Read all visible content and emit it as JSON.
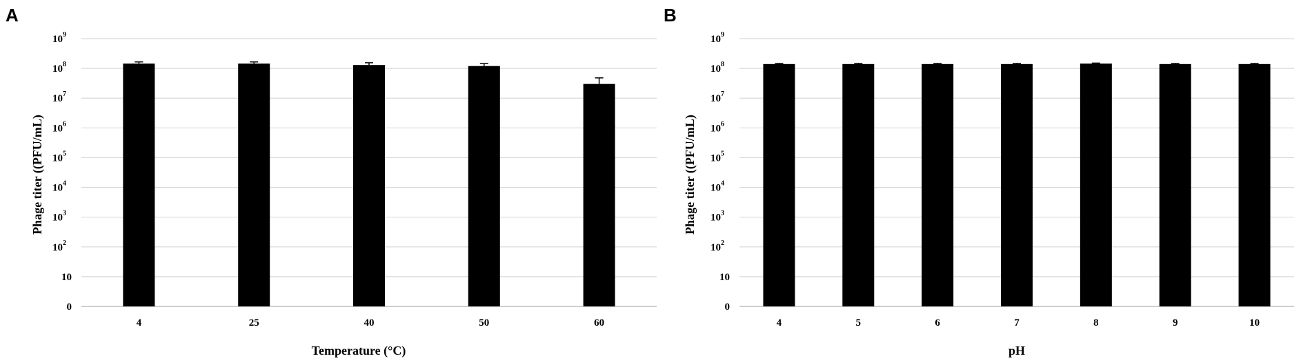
{
  "chart_data": [
    {
      "type": "bar",
      "panel": "A",
      "xlabel": "Temperature (°C)",
      "ylabel": "Phage titer ((PFU/mL)",
      "yscale": "log",
      "ylim": [
        "0",
        "10^9"
      ],
      "y_ticks": [
        {
          "base": "0",
          "exp": ""
        },
        {
          "base": "10",
          "exp": ""
        },
        {
          "base": "10",
          "exp": "2"
        },
        {
          "base": "10",
          "exp": "3"
        },
        {
          "base": "10",
          "exp": "4"
        },
        {
          "base": "10",
          "exp": "5"
        },
        {
          "base": "10",
          "exp": "6"
        },
        {
          "base": "10",
          "exp": "7"
        },
        {
          "base": "10",
          "exp": "8"
        },
        {
          "base": "10",
          "exp": "9"
        }
      ],
      "categories": [
        "4",
        "25",
        "40",
        "50",
        "60"
      ],
      "values": [
        145000000,
        145000000,
        130000000,
        120000000,
        30000000
      ],
      "errors": [
        20000000,
        20000000,
        25000000,
        25000000,
        18000000
      ],
      "grid": true,
      "bar_color": "#000000"
    },
    {
      "type": "bar",
      "panel": "B",
      "xlabel": "pH",
      "ylabel": "Phage titer ((PFU/mL)",
      "yscale": "log",
      "ylim": [
        "0",
        "10^9"
      ],
      "y_ticks": [
        {
          "base": "0",
          "exp": ""
        },
        {
          "base": "10",
          "exp": ""
        },
        {
          "base": "10",
          "exp": "2"
        },
        {
          "base": "10",
          "exp": "3"
        },
        {
          "base": "10",
          "exp": "4"
        },
        {
          "base": "10",
          "exp": "5"
        },
        {
          "base": "10",
          "exp": "6"
        },
        {
          "base": "10",
          "exp": "7"
        },
        {
          "base": "10",
          "exp": "8"
        },
        {
          "base": "10",
          "exp": "9"
        }
      ],
      "categories": [
        "4",
        "5",
        "6",
        "7",
        "8",
        "9",
        "10"
      ],
      "values": [
        140000000,
        140000000,
        140000000,
        140000000,
        145000000,
        140000000,
        140000000
      ],
      "errors": [
        8000000,
        8000000,
        8000000,
        8000000,
        6000000,
        8000000,
        8000000
      ],
      "grid": true,
      "bar_color": "#000000"
    }
  ]
}
